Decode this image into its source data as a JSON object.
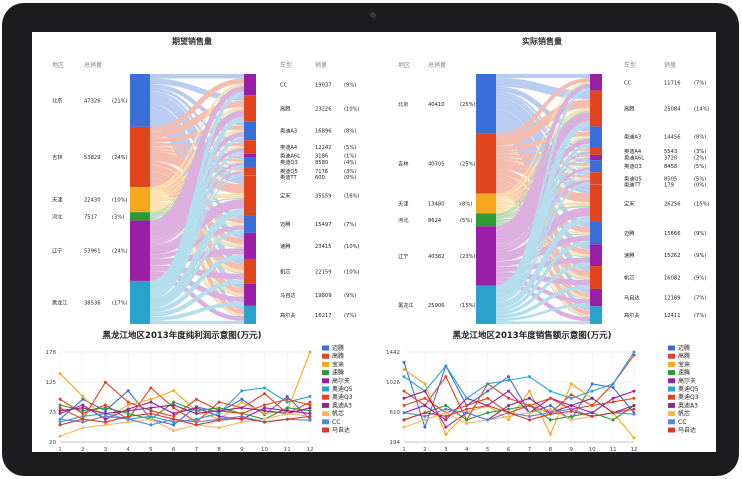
{
  "panels": [
    {
      "title": "期望销售量",
      "headers": {
        "region": "地区",
        "region_total": "总销量",
        "model": "车型",
        "model_total": "销量"
      },
      "regions": [
        {
          "name": "北京",
          "value": "47326",
          "pct": "(21%)",
          "v": 47326,
          "color": "#3a6fd8"
        },
        {
          "name": "吉林",
          "value": "53829",
          "pct": "(24%)",
          "v": 53829,
          "color": "#e0451e"
        },
        {
          "name": "天津",
          "value": "22430",
          "pct": "(10%)",
          "v": 22430,
          "color": "#f6a81c"
        },
        {
          "name": "河北",
          "value": "7517",
          "pct": "(3%)",
          "v": 7517,
          "color": "#2e9a36"
        },
        {
          "name": "辽宁",
          "value": "53961",
          "pct": "(24%)",
          "v": 53961,
          "color": "#9a1fa6"
        },
        {
          "name": "黑龙江",
          "value": "38536",
          "pct": "(17%)",
          "v": 38536,
          "color": "#2aa3cc"
        }
      ],
      "models": [
        {
          "name": "CC",
          "value": "19037",
          "pct": "(9%)",
          "v": 19037,
          "color": "#9a1fa6"
        },
        {
          "name": "高腾",
          "value": "23226",
          "pct": "(10%)",
          "v": 23226,
          "color": "#e0451e"
        },
        {
          "name": "奥迪A3",
          "value": "16896",
          "pct": "(8%)",
          "v": 16896,
          "color": "#3a6fd8"
        },
        {
          "name": "奥迪A4",
          "value": "12242",
          "pct": "(5%)",
          "v": 12242,
          "color": "#e0451e"
        },
        {
          "name": "奥迪A6L",
          "value": "3186",
          "pct": "(1%)",
          "v": 3186,
          "color": "#9a1fa6"
        },
        {
          "name": "奥迪Q3",
          "value": "8580",
          "pct": "(4%)",
          "v": 8580,
          "color": "#3a6fd8"
        },
        {
          "name": "奥迪Q5",
          "value": "7176",
          "pct": "(3%)",
          "v": 7176,
          "color": "#e0451e"
        },
        {
          "name": "奥迪TT",
          "value": "600",
          "pct": "(0%)",
          "v": 600,
          "color": "#2aa3cc"
        },
        {
          "name": "宝来",
          "value": "35559",
          "pct": "(16%)",
          "v": 35559,
          "color": "#e0451e"
        },
        {
          "name": "迈腾",
          "value": "15497",
          "pct": "(7%)",
          "v": 15497,
          "color": "#3a6fd8"
        },
        {
          "name": "速腾",
          "value": "23415",
          "pct": "(10%)",
          "v": 23415,
          "color": "#9a1fa6"
        },
        {
          "name": "帆芯",
          "value": "22159",
          "pct": "(10%)",
          "v": 22159,
          "color": "#e0451e"
        },
        {
          "name": "马自达",
          "value": "19809",
          "pct": "(9%)",
          "v": 19809,
          "color": "#9a1fa6"
        },
        {
          "name": "高尔夫",
          "value": "16217",
          "pct": "(7%)",
          "v": 16217,
          "color": "#2aa3cc"
        }
      ]
    },
    {
      "title": "实际销售量",
      "headers": {
        "region": "地区",
        "region_total": "总销量",
        "model": "车型",
        "model_total": "销量"
      },
      "regions": [
        {
          "name": "北京",
          "value": "40410",
          "pct": "(25%)",
          "v": 40410,
          "color": "#3a6fd8"
        },
        {
          "name": "吉林",
          "value": "40705",
          "pct": "(25%)",
          "v": 40705,
          "color": "#e0451e"
        },
        {
          "name": "天津",
          "value": "13480",
          "pct": "(8%)",
          "v": 13480,
          "color": "#f6a81c"
        },
        {
          "name": "河北",
          "value": "8624",
          "pct": "(5%)",
          "v": 8624,
          "color": "#2e9a36"
        },
        {
          "name": "辽宁",
          "value": "40382",
          "pct": "(23%)",
          "v": 40382,
          "color": "#9a1fa6"
        },
        {
          "name": "黑龙江",
          "value": "25906",
          "pct": "(15%)",
          "v": 25906,
          "color": "#2aa3cc"
        }
      ],
      "models": [
        {
          "name": "CC",
          "value": "11716",
          "pct": "(7%)",
          "v": 11716,
          "color": "#9a1fa6"
        },
        {
          "name": "高腾",
          "value": "25084",
          "pct": "(14%)",
          "v": 25084,
          "color": "#e0451e"
        },
        {
          "name": "奥迪A3",
          "value": "14456",
          "pct": "(8%)",
          "v": 14456,
          "color": "#3a6fd8"
        },
        {
          "name": "奥迪A4",
          "value": "5543",
          "pct": "(3%)",
          "v": 5543,
          "color": "#e0451e"
        },
        {
          "name": "奥迪A6L",
          "value": "3720",
          "pct": "(2%)",
          "v": 3720,
          "color": "#9a1fa6"
        },
        {
          "name": "奥迪Q3",
          "value": "8458",
          "pct": "(5%)",
          "v": 8458,
          "color": "#3a6fd8"
        },
        {
          "name": "奥迪Q5",
          "value": "8505",
          "pct": "(5%)",
          "v": 8505,
          "color": "#e0451e"
        },
        {
          "name": "奥迪TT",
          "value": "179",
          "pct": "(0%)",
          "v": 179,
          "color": "#2aa3cc"
        },
        {
          "name": "宝来",
          "value": "26256",
          "pct": "(15%)",
          "v": 26256,
          "color": "#e0451e"
        },
        {
          "name": "迈腾",
          "value": "15666",
          "pct": "(9%)",
          "v": 15666,
          "color": "#3a6fd8"
        },
        {
          "name": "速腾",
          "value": "15262",
          "pct": "(9%)",
          "v": 15262,
          "color": "#9a1fa6"
        },
        {
          "name": "帆芯",
          "value": "16082",
          "pct": "(9%)",
          "v": 16082,
          "color": "#e0451e"
        },
        {
          "name": "马自达",
          "value": "12189",
          "pct": "(7%)",
          "v": 12189,
          "color": "#9a1fa6"
        },
        {
          "name": "高尔夫",
          "value": "12411",
          "pct": "(7%)",
          "v": 12411,
          "color": "#2aa3cc"
        }
      ]
    }
  ],
  "chart_data": [
    {
      "type": "line",
      "title": "黑龙江地区2013年度纯利润示意图(万元)",
      "x": [
        1,
        2,
        3,
        4,
        5,
        6,
        7,
        8,
        9,
        10,
        11,
        12
      ],
      "ylim": [
        20,
        178
      ],
      "yticks": [
        20,
        73,
        125,
        178
      ],
      "grid": true,
      "legend": "right",
      "series": [
        {
          "name": "迈腾",
          "color": "#3a6fd8",
          "values": [
            60,
            95,
            75,
            110,
            60,
            50,
            82,
            72,
            95,
            68,
            100,
            60
          ]
        },
        {
          "name": "高腾",
          "color": "#e0451e",
          "values": [
            95,
            70,
            85,
            60,
            115,
            80,
            55,
            90,
            80,
            105,
            70,
            90
          ]
        },
        {
          "name": "宝来",
          "color": "#f6a81c",
          "values": [
            140,
            100,
            60,
            85,
            95,
            110,
            75,
            60,
            90,
            70,
            75,
            178
          ]
        },
        {
          "name": "速腾",
          "color": "#2e9a36",
          "values": [
            85,
            75,
            80,
            70,
            60,
            90,
            75,
            80,
            70,
            60,
            80,
            75
          ]
        },
        {
          "name": "高尔夫",
          "color": "#9a1fa6",
          "values": [
            70,
            85,
            60,
            78,
            90,
            70,
            80,
            65,
            60,
            80,
            75,
            70
          ]
        },
        {
          "name": "奥迪Q5",
          "color": "#2aa3cc",
          "values": [
            55,
            65,
            70,
            60,
            65,
            55,
            60,
            70,
            110,
            115,
            90,
            100
          ]
        },
        {
          "name": "奥迪Q3",
          "color": "#e0451e",
          "values": [
            80,
            60,
            125,
            90,
            75,
            65,
            95,
            75,
            70,
            85,
            95,
            85
          ]
        },
        {
          "name": "奥迪A3",
          "color": "#8a2a8a",
          "values": [
            75,
            80,
            70,
            75,
            80,
            85,
            70,
            75,
            80,
            75,
            70,
            80
          ]
        },
        {
          "name": "帆芯",
          "color": "#f4b860",
          "values": [
            30,
            45,
            50,
            55,
            60,
            40,
            50,
            45,
            55,
            60,
            70,
            65
          ]
        },
        {
          "name": "CC",
          "color": "#5a86e0",
          "values": [
            60,
            55,
            65,
            60,
            50,
            60,
            55,
            60,
            65,
            55,
            60,
            58
          ]
        },
        {
          "name": "马自达",
          "color": "#d83a2a",
          "values": [
            50,
            60,
            55,
            65,
            70,
            60,
            50,
            58,
            62,
            55,
            60,
            65
          ]
        }
      ]
    },
    {
      "type": "line",
      "title": "黑龙江地区2013年度销售额示意图(万元)",
      "x": [
        1,
        2,
        3,
        4,
        5,
        6,
        7,
        8,
        9,
        10,
        11,
        12
      ],
      "ylim": [
        194,
        1442
      ],
      "yticks": [
        194,
        610,
        1026,
        1442
      ],
      "grid": true,
      "legend": "right",
      "series": [
        {
          "name": "迈腾",
          "color": "#3a6fd8",
          "values": [
            1300,
            400,
            1250,
            700,
            900,
            1100,
            600,
            700,
            500,
            1000,
            950,
            600
          ]
        },
        {
          "name": "高腾",
          "color": "#e0451e",
          "values": [
            900,
            700,
            1100,
            500,
            1000,
            800,
            700,
            600,
            850,
            700,
            1000,
            1400
          ]
        },
        {
          "name": "宝来",
          "color": "#f6a81c",
          "values": [
            1200,
            1000,
            300,
            600,
            700,
            500,
            900,
            300,
            1000,
            800,
            600,
            250
          ]
        },
        {
          "name": "速腾",
          "color": "#2e9a36",
          "values": [
            500,
            600,
            700,
            500,
            600,
            650,
            700,
            500,
            550,
            600,
            500,
            700
          ]
        },
        {
          "name": "高尔夫",
          "color": "#9a1fa6",
          "values": [
            600,
            700,
            500,
            800,
            700,
            900,
            600,
            800,
            700,
            600,
            800,
            900
          ]
        },
        {
          "name": "奥迪Q5",
          "color": "#2aa3cc",
          "values": [
            1100,
            900,
            1250,
            800,
            1000,
            1050,
            1100,
            900,
            800,
            900,
            1000,
            1442
          ]
        },
        {
          "name": "奥迪Q3",
          "color": "#e0451e",
          "values": [
            700,
            800,
            600,
            700,
            800,
            600,
            700,
            800,
            650,
            700,
            750,
            800
          ]
        },
        {
          "name": "奥迪A3",
          "color": "#8a2a8a",
          "values": [
            800,
            900,
            400,
            600,
            500,
            700,
            800,
            600,
            700,
            800,
            600,
            700
          ]
        },
        {
          "name": "帆芯",
          "color": "#f4b860",
          "values": [
            400,
            500,
            600,
            450,
            500,
            550,
            600,
            650,
            500,
            550,
            600,
            650
          ]
        },
        {
          "name": "CC",
          "color": "#5a86e0",
          "values": [
            600,
            550,
            650,
            600,
            500,
            600,
            550,
            600,
            650,
            550,
            600,
            580
          ]
        },
        {
          "name": "马自达",
          "color": "#d83a2a",
          "values": [
            500,
            600,
            550,
            650,
            700,
            600,
            500,
            580,
            620,
            550,
            600,
            650
          ]
        }
      ]
    }
  ]
}
